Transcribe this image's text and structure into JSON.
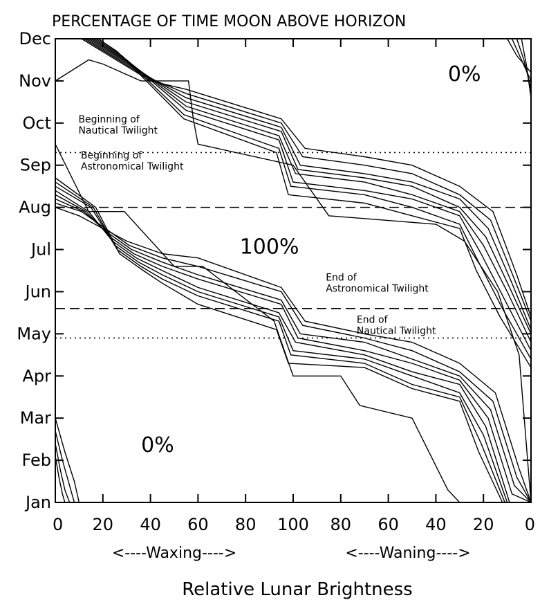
{
  "chart_data": {
    "type": "line",
    "title": "PERCENTAGE OF TIME MOON ABOVE HORIZON",
    "xlabel": "Relative Lunar Brightness",
    "x_phase_labels": [
      "<----Waxing---->",
      "<----Waning---->"
    ],
    "x_tick_labels": [
      "0",
      "20",
      "40",
      "60",
      "80",
      "100",
      "80",
      "60",
      "40",
      "20",
      "0"
    ],
    "x_lim": [
      0,
      200
    ],
    "y_tick_labels": [
      "Jan",
      "Feb",
      "Mar",
      "Apr",
      "May",
      "Jun",
      "Jul",
      "Aug",
      "Sep",
      "Oct",
      "Nov",
      "Dec"
    ],
    "y_lim": [
      0,
      11
    ],
    "grid": false,
    "annotations": [
      {
        "text_lines": [
          "Beginning of",
          "Nautical Twilight"
        ],
        "anchor": [
          1,
          8.75
        ]
      },
      {
        "text_lines": [
          "Beginning of",
          "Astronomical Twilight"
        ],
        "anchor": [
          2,
          7.9
        ]
      },
      {
        "text_lines": [
          "End of",
          "Astronomical Twilight"
        ],
        "anchor": [
          105,
          5.0
        ]
      },
      {
        "text_lines": [
          "End of",
          "Nautical Twilight"
        ],
        "anchor": [
          118,
          4.0
        ]
      }
    ],
    "region_labels": [
      {
        "text": "0%",
        "x": 172,
        "y": 10.0
      },
      {
        "text": "100%",
        "x": 90,
        "y": 5.9
      },
      {
        "text": "0%",
        "x": 43,
        "y": 1.2
      }
    ],
    "reference_lines": [
      {
        "name": "Beginning of Nautical Twilight",
        "style": "dotted",
        "y": 8.3
      },
      {
        "name": "Beginning of Astronomical Twilight",
        "style": "dashed",
        "y": 7.0
      },
      {
        "name": "End of Astronomical Twilight",
        "style": "dashed",
        "y": 4.6
      },
      {
        "name": "End of Nautical Twilight",
        "style": "dotted",
        "y": 3.9
      }
    ],
    "series": [
      {
        "group": "upper",
        "points": [
          [
            11,
            11
          ],
          [
            40,
            10
          ],
          [
            55,
            9.8
          ],
          [
            95,
            9.1
          ],
          [
            105,
            8.4
          ],
          [
            130,
            8.2
          ],
          [
            150,
            8.0
          ],
          [
            170,
            7.5
          ],
          [
            184,
            6.9
          ],
          [
            194,
            5.4
          ],
          [
            200,
            4.4
          ]
        ]
      },
      {
        "group": "upper",
        "points": [
          [
            12,
            11
          ],
          [
            38,
            10.1
          ],
          [
            55,
            9.7
          ],
          [
            95,
            9.0
          ],
          [
            104,
            8.2
          ],
          [
            130,
            8.0
          ],
          [
            150,
            7.8
          ],
          [
            170,
            7.3
          ],
          [
            183,
            6.7
          ],
          [
            193,
            5.3
          ],
          [
            200,
            4.3
          ]
        ]
      },
      {
        "group": "upper",
        "points": [
          [
            13,
            11
          ],
          [
            36,
            10.2
          ],
          [
            55,
            9.6
          ],
          [
            95,
            8.9
          ],
          [
            103,
            8.0
          ],
          [
            130,
            7.8
          ],
          [
            150,
            7.6
          ],
          [
            170,
            7.2
          ],
          [
            182,
            6.5
          ],
          [
            192,
            5.2
          ],
          [
            200,
            4.1
          ]
        ]
      },
      {
        "group": "upper",
        "points": [
          [
            14,
            11
          ],
          [
            34,
            10.3
          ],
          [
            55,
            9.5
          ],
          [
            95,
            8.8
          ],
          [
            102,
            7.9
          ],
          [
            130,
            7.7
          ],
          [
            150,
            7.5
          ],
          [
            170,
            7.0
          ],
          [
            181,
            6.3
          ],
          [
            191,
            5.1
          ],
          [
            200,
            4.0
          ]
        ]
      },
      {
        "group": "upper",
        "points": [
          [
            15,
            11
          ],
          [
            32,
            10.4
          ],
          [
            55,
            9.4
          ],
          [
            94,
            8.7
          ],
          [
            101,
            7.8
          ],
          [
            130,
            7.6
          ],
          [
            150,
            7.3
          ],
          [
            170,
            6.9
          ],
          [
            180,
            6.1
          ],
          [
            190,
            5.0
          ],
          [
            200,
            3.8
          ]
        ]
      },
      {
        "group": "upper",
        "points": [
          [
            16,
            11
          ],
          [
            30,
            10.5
          ],
          [
            55,
            9.3
          ],
          [
            94,
            8.6
          ],
          [
            100,
            7.6
          ],
          [
            130,
            7.4
          ],
          [
            150,
            7.2
          ],
          [
            170,
            6.8
          ],
          [
            179,
            5.9
          ],
          [
            189,
            4.8
          ],
          [
            200,
            3.6
          ]
        ]
      },
      {
        "group": "upper",
        "points": [
          [
            17,
            11
          ],
          [
            28,
            10.6
          ],
          [
            54,
            9.2
          ],
          [
            94,
            8.4
          ],
          [
            99,
            7.5
          ],
          [
            130,
            7.3
          ],
          [
            150,
            7.0
          ],
          [
            170,
            6.6
          ],
          [
            178,
            5.7
          ],
          [
            188,
            4.6
          ],
          [
            200,
            3.4
          ]
        ]
      },
      {
        "group": "upper",
        "points": [
          [
            18,
            11
          ],
          [
            26,
            10.7
          ],
          [
            54,
            9.1
          ],
          [
            93,
            8.3
          ],
          [
            98,
            7.3
          ],
          [
            130,
            7.1
          ],
          [
            150,
            6.8
          ],
          [
            170,
            6.5
          ],
          [
            177,
            5.5
          ],
          [
            187,
            4.4
          ],
          [
            200,
            3.2
          ]
        ]
      },
      {
        "group": "upper",
        "points": [
          [
            0,
            10
          ],
          [
            14,
            10.5
          ],
          [
            20,
            10.4
          ],
          [
            36,
            10.0
          ],
          [
            56,
            10.0
          ],
          [
            58,
            9.1
          ],
          [
            60,
            8.5
          ],
          [
            100,
            8.0
          ],
          [
            115,
            6.8
          ],
          [
            160,
            6.6
          ],
          [
            172,
            6.2
          ],
          [
            186,
            5.0
          ],
          [
            195,
            3.5
          ],
          [
            200,
            0
          ]
        ]
      },
      {
        "group": "lower",
        "points": [
          [
            0,
            7.0
          ],
          [
            10,
            6.8
          ],
          [
            20,
            6.5
          ],
          [
            30,
            6.2
          ],
          [
            45,
            5.9
          ],
          [
            60,
            5.8
          ],
          [
            95,
            5.1
          ],
          [
            105,
            4.3
          ],
          [
            130,
            4.0
          ],
          [
            150,
            3.8
          ],
          [
            170,
            3.3
          ],
          [
            185,
            2.6
          ],
          [
            195,
            0.8
          ],
          [
            200,
            0
          ]
        ]
      },
      {
        "group": "lower",
        "points": [
          [
            0,
            7.1
          ],
          [
            11,
            6.9
          ],
          [
            21,
            6.5
          ],
          [
            31,
            6.1
          ],
          [
            45,
            5.8
          ],
          [
            60,
            5.6
          ],
          [
            95,
            5.0
          ],
          [
            104,
            4.2
          ],
          [
            130,
            3.9
          ],
          [
            150,
            3.6
          ],
          [
            170,
            3.1
          ],
          [
            184,
            2.4
          ],
          [
            194,
            0.6
          ],
          [
            200,
            0
          ]
        ]
      },
      {
        "group": "lower",
        "points": [
          [
            0,
            7.2
          ],
          [
            12,
            6.9
          ],
          [
            22,
            6.4
          ],
          [
            32,
            6.0
          ],
          [
            45,
            5.7
          ],
          [
            60,
            5.4
          ],
          [
            95,
            4.8
          ],
          [
            103,
            4.0
          ],
          [
            130,
            3.8
          ],
          [
            150,
            3.4
          ],
          [
            170,
            3.0
          ],
          [
            183,
            2.2
          ],
          [
            193,
            0.4
          ],
          [
            200,
            0
          ]
        ]
      },
      {
        "group": "lower",
        "points": [
          [
            0,
            7.3
          ],
          [
            13,
            6.9
          ],
          [
            23,
            6.3
          ],
          [
            33,
            5.9
          ],
          [
            45,
            5.6
          ],
          [
            60,
            5.3
          ],
          [
            95,
            4.7
          ],
          [
            102,
            3.9
          ],
          [
            130,
            3.6
          ],
          [
            150,
            3.3
          ],
          [
            170,
            2.9
          ],
          [
            182,
            2.0
          ],
          [
            192,
            0.2
          ],
          [
            200,
            0
          ]
        ]
      },
      {
        "group": "lower",
        "points": [
          [
            0,
            7.4
          ],
          [
            14,
            6.9
          ],
          [
            24,
            6.2
          ],
          [
            34,
            5.8
          ],
          [
            45,
            5.5
          ],
          [
            60,
            5.1
          ],
          [
            94,
            4.5
          ],
          [
            101,
            3.8
          ],
          [
            130,
            3.5
          ],
          [
            150,
            3.1
          ],
          [
            170,
            2.8
          ],
          [
            181,
            1.8
          ],
          [
            191,
            0
          ],
          [
            200,
            0
          ]
        ]
      },
      {
        "group": "lower",
        "points": [
          [
            0,
            7.5
          ],
          [
            15,
            7.0
          ],
          [
            25,
            6.1
          ],
          [
            35,
            5.7
          ],
          [
            45,
            5.4
          ],
          [
            60,
            5.0
          ],
          [
            94,
            4.4
          ],
          [
            100,
            3.6
          ],
          [
            130,
            3.4
          ],
          [
            150,
            3.0
          ],
          [
            170,
            2.6
          ],
          [
            180,
            1.6
          ],
          [
            190,
            0
          ]
        ]
      },
      {
        "group": "lower",
        "points": [
          [
            0,
            7.6
          ],
          [
            16,
            7.0
          ],
          [
            26,
            6.0
          ],
          [
            36,
            5.6
          ],
          [
            45,
            5.3
          ],
          [
            60,
            4.9
          ],
          [
            94,
            4.3
          ],
          [
            99,
            3.5
          ],
          [
            130,
            3.3
          ],
          [
            150,
            2.8
          ],
          [
            170,
            2.5
          ],
          [
            179,
            1.4
          ],
          [
            189,
            0
          ]
        ]
      },
      {
        "group": "lower",
        "points": [
          [
            0,
            7.7
          ],
          [
            17,
            7.0
          ],
          [
            27,
            5.9
          ],
          [
            37,
            5.5
          ],
          [
            45,
            5.2
          ],
          [
            60,
            4.7
          ],
          [
            93,
            4.1
          ],
          [
            98,
            3.3
          ],
          [
            130,
            3.2
          ],
          [
            150,
            2.7
          ],
          [
            170,
            2.4
          ],
          [
            178,
            1.2
          ],
          [
            188,
            0
          ]
        ]
      },
      {
        "group": "lower",
        "points": [
          [
            0,
            8.5
          ],
          [
            14,
            6.9
          ],
          [
            29,
            6.9
          ],
          [
            50,
            5.6
          ],
          [
            62,
            5.6
          ],
          [
            92,
            4.3
          ],
          [
            100,
            3.0
          ],
          [
            120,
            3.0
          ],
          [
            128,
            2.3
          ],
          [
            150,
            2.0
          ],
          [
            165,
            0.3
          ],
          [
            170,
            0
          ]
        ]
      },
      {
        "group": "corner",
        "points": [
          [
            190,
            11
          ],
          [
            194,
            10.6
          ],
          [
            200,
            10.2
          ]
        ]
      },
      {
        "group": "corner",
        "points": [
          [
            192,
            11
          ],
          [
            196,
            10.5
          ],
          [
            200,
            10.0
          ]
        ]
      },
      {
        "group": "corner",
        "points": [
          [
            194,
            11
          ],
          [
            197,
            10.5
          ],
          [
            200,
            9.8
          ]
        ]
      },
      {
        "group": "corner",
        "points": [
          [
            196,
            11
          ],
          [
            198,
            10.4
          ],
          [
            200,
            9.6
          ]
        ]
      },
      {
        "group": "corner",
        "points": [
          [
            0,
            2.0
          ],
          [
            4,
            1.2
          ],
          [
            8,
            0.5
          ],
          [
            10,
            0
          ]
        ]
      },
      {
        "group": "corner",
        "points": [
          [
            0,
            1.7
          ],
          [
            3,
            1.0
          ],
          [
            6,
            0.4
          ],
          [
            8,
            0
          ]
        ]
      },
      {
        "group": "corner",
        "points": [
          [
            0,
            1.4
          ],
          [
            2,
            0.8
          ],
          [
            4,
            0.3
          ],
          [
            6,
            0
          ]
        ]
      },
      {
        "group": "corner",
        "points": [
          [
            0,
            1.1
          ],
          [
            1.5,
            0.6
          ],
          [
            3,
            0.2
          ],
          [
            4,
            0
          ]
        ]
      }
    ]
  }
}
